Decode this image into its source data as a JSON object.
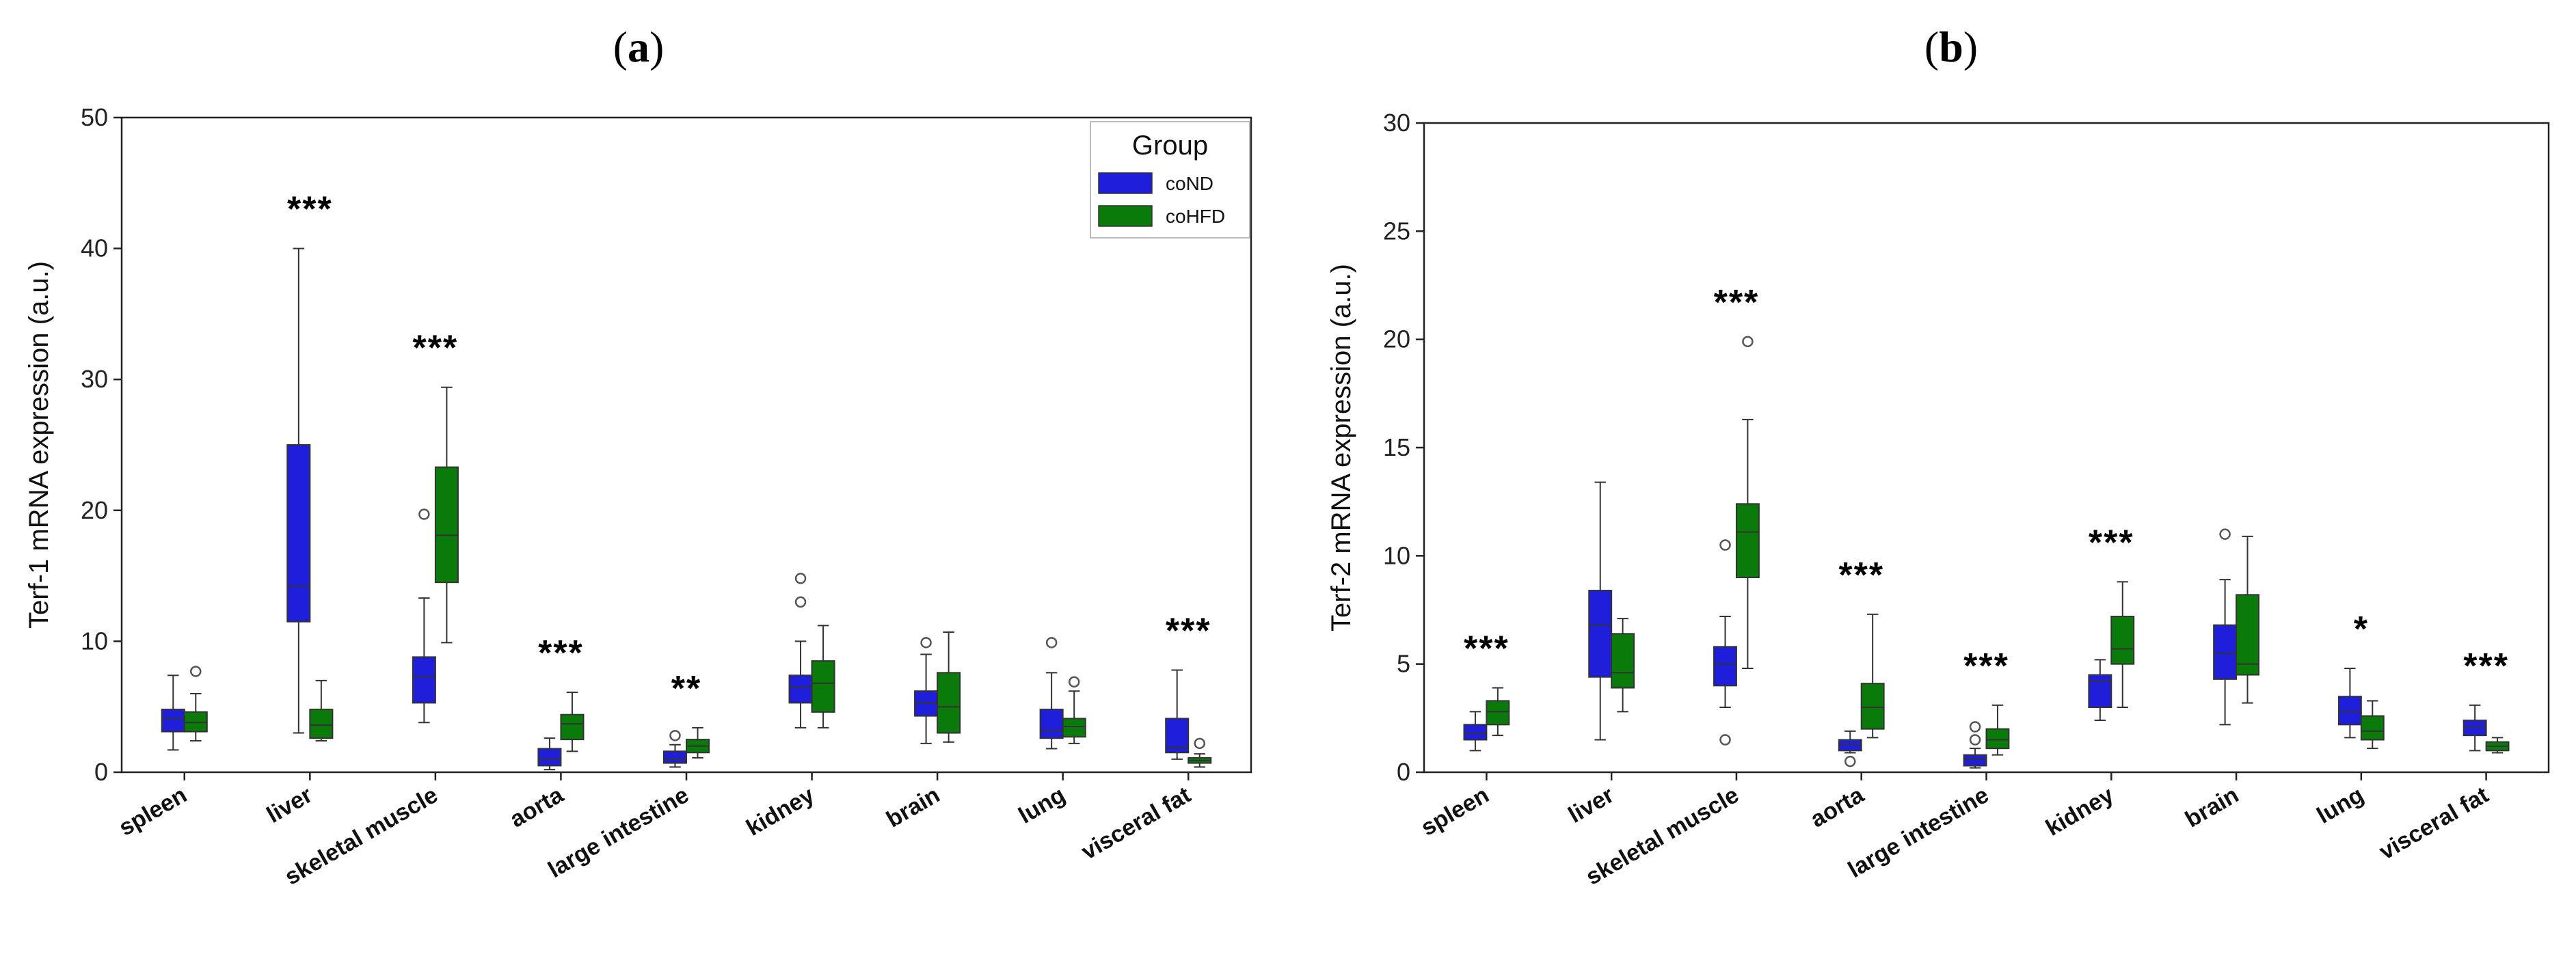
{
  "figure": {
    "panel_labels": [
      {
        "open": "(",
        "letter": "a",
        "close": ")"
      },
      {
        "open": "(",
        "letter": "b",
        "close": ")"
      }
    ]
  },
  "chart_data": [
    {
      "type": "box",
      "panel": "a",
      "title": "",
      "xlabel": "",
      "ylabel": "Terf-1 mRNA expression (a.u.)",
      "ylim": [
        0,
        50
      ],
      "yticks": [
        0,
        10,
        20,
        30,
        40,
        50
      ],
      "categories": [
        "spleen",
        "liver",
        "skeletal muscle",
        "aorta",
        "large intestine",
        "kidney",
        "brain",
        "lung",
        "visceral fat"
      ],
      "legend": {
        "title": "Group",
        "placement": "top-right",
        "entries": [
          {
            "name": "coND",
            "color": "#1f1fdb"
          },
          {
            "name": "coHFD",
            "color": "#0a7a0a"
          }
        ]
      },
      "significance": [
        "",
        "***",
        "***",
        "***",
        "**",
        "",
        "",
        "",
        "***"
      ],
      "series": [
        {
          "name": "coND",
          "color": "#1f1fdb",
          "boxes": [
            {
              "whislo": 1.7,
              "q1": 3.1,
              "med": 4.1,
              "q3": 4.8,
              "whishi": 7.4,
              "fliers": []
            },
            {
              "whislo": 3.0,
              "q1": 11.5,
              "med": 14.2,
              "q3": 25.0,
              "whishi": 40.0,
              "fliers": []
            },
            {
              "whislo": 3.8,
              "q1": 5.3,
              "med": 7.3,
              "q3": 8.8,
              "whishi": 13.3,
              "fliers": [
                19.7
              ]
            },
            {
              "whislo": 0.2,
              "q1": 0.5,
              "med": 1.0,
              "q3": 1.8,
              "whishi": 2.6,
              "fliers": []
            },
            {
              "whislo": 0.4,
              "q1": 0.7,
              "med": 1.0,
              "q3": 1.6,
              "whishi": 2.1,
              "fliers": [
                2.8
              ]
            },
            {
              "whislo": 3.4,
              "q1": 5.3,
              "med": 6.5,
              "q3": 7.4,
              "whishi": 10.0,
              "fliers": [
                13.0,
                14.8
              ]
            },
            {
              "whislo": 2.2,
              "q1": 4.3,
              "med": 5.3,
              "q3": 6.2,
              "whishi": 9.0,
              "fliers": [
                9.9
              ]
            },
            {
              "whislo": 1.8,
              "q1": 2.6,
              "med": 3.2,
              "q3": 4.8,
              "whishi": 7.6,
              "fliers": [
                9.9
              ]
            },
            {
              "whislo": 1.0,
              "q1": 1.5,
              "med": 1.9,
              "q3": 4.1,
              "whishi": 7.8,
              "fliers": []
            }
          ]
        },
        {
          "name": "coHFD",
          "color": "#0a7a0a",
          "boxes": [
            {
              "whislo": 2.4,
              "q1": 3.1,
              "med": 3.8,
              "q3": 4.6,
              "whishi": 6.0,
              "fliers": [
                7.7
              ]
            },
            {
              "whislo": 2.4,
              "q1": 2.6,
              "med": 3.6,
              "q3": 4.8,
              "whishi": 7.0,
              "fliers": []
            },
            {
              "whislo": 9.9,
              "q1": 14.5,
              "med": 18.1,
              "q3": 23.3,
              "whishi": 29.4,
              "fliers": []
            },
            {
              "whislo": 1.6,
              "q1": 2.5,
              "med": 3.7,
              "q3": 4.4,
              "whishi": 6.1,
              "fliers": []
            },
            {
              "whislo": 1.1,
              "q1": 1.5,
              "med": 2.0,
              "q3": 2.5,
              "whishi": 3.4,
              "fliers": []
            },
            {
              "whislo": 3.4,
              "q1": 4.6,
              "med": 6.8,
              "q3": 8.5,
              "whishi": 11.2,
              "fliers": []
            },
            {
              "whislo": 2.3,
              "q1": 3.0,
              "med": 5.0,
              "q3": 7.6,
              "whishi": 10.7,
              "fliers": []
            },
            {
              "whislo": 2.2,
              "q1": 2.7,
              "med": 3.5,
              "q3": 4.1,
              "whishi": 6.2,
              "fliers": [
                6.9
              ]
            },
            {
              "whislo": 0.4,
              "q1": 0.7,
              "med": 0.9,
              "q3": 1.1,
              "whishi": 1.4,
              "fliers": [
                2.2
              ]
            }
          ]
        }
      ]
    },
    {
      "type": "box",
      "panel": "b",
      "title": "",
      "xlabel": "",
      "ylabel": "Terf-2 mRNA expression (a.u.)",
      "ylim": [
        0,
        30
      ],
      "yticks": [
        0,
        5,
        10,
        15,
        20,
        25,
        30
      ],
      "categories": [
        "spleen",
        "liver",
        "skeletal muscle",
        "aorta",
        "large intestine",
        "kidney",
        "brain",
        "lung",
        "visceral fat"
      ],
      "significance": [
        "***",
        "",
        "***",
        "***",
        "***",
        "***",
        "",
        "*",
        "***"
      ],
      "series": [
        {
          "name": "coND",
          "color": "#1f1fdb",
          "boxes": [
            {
              "whislo": 1.0,
              "q1": 1.5,
              "med": 1.8,
              "q3": 2.2,
              "whishi": 2.8,
              "fliers": []
            },
            {
              "whislo": 1.5,
              "q1": 4.4,
              "med": 6.8,
              "q3": 8.4,
              "whishi": 13.4,
              "fliers": []
            },
            {
              "whislo": 3.0,
              "q1": 4.0,
              "med": 5.0,
              "q3": 5.8,
              "whishi": 7.2,
              "fliers": [
                10.5,
                1.5
              ]
            },
            {
              "whislo": 0.9,
              "q1": 1.0,
              "med": 1.3,
              "q3": 1.5,
              "whishi": 1.9,
              "fliers": [
                0.5
              ]
            },
            {
              "whislo": 0.2,
              "q1": 0.3,
              "med": 0.6,
              "q3": 0.8,
              "whishi": 1.1,
              "fliers": [
                1.5,
                2.1
              ]
            },
            {
              "whislo": 2.4,
              "q1": 3.0,
              "med": 4.2,
              "q3": 4.5,
              "whishi": 5.2,
              "fliers": []
            },
            {
              "whislo": 2.2,
              "q1": 4.3,
              "med": 5.5,
              "q3": 6.8,
              "whishi": 8.9,
              "fliers": [
                11.0
              ]
            },
            {
              "whislo": 1.6,
              "q1": 2.2,
              "med": 2.8,
              "q3": 3.5,
              "whishi": 4.8,
              "fliers": []
            },
            {
              "whislo": 1.0,
              "q1": 1.7,
              "med": 2.1,
              "q3": 2.4,
              "whishi": 3.1,
              "fliers": []
            }
          ]
        },
        {
          "name": "coHFD",
          "color": "#0a7a0a",
          "boxes": [
            {
              "whislo": 1.7,
              "q1": 2.2,
              "med": 2.8,
              "q3": 3.3,
              "whishi": 3.9,
              "fliers": []
            },
            {
              "whislo": 2.8,
              "q1": 3.9,
              "med": 4.6,
              "q3": 6.4,
              "whishi": 7.1,
              "fliers": []
            },
            {
              "whislo": 4.8,
              "q1": 9.0,
              "med": 11.1,
              "q3": 12.4,
              "whishi": 16.3,
              "fliers": [
                19.9
              ]
            },
            {
              "whislo": 1.6,
              "q1": 2.0,
              "med": 3.0,
              "q3": 4.1,
              "whishi": 7.3,
              "fliers": []
            },
            {
              "whislo": 0.8,
              "q1": 1.1,
              "med": 1.5,
              "q3": 2.0,
              "whishi": 3.1,
              "fliers": []
            },
            {
              "whislo": 3.0,
              "q1": 5.0,
              "med": 5.7,
              "q3": 7.2,
              "whishi": 8.8,
              "fliers": []
            },
            {
              "whislo": 3.2,
              "q1": 4.5,
              "med": 5.0,
              "q3": 8.2,
              "whishi": 10.9,
              "fliers": []
            },
            {
              "whislo": 1.1,
              "q1": 1.5,
              "med": 1.9,
              "q3": 2.6,
              "whishi": 3.3,
              "fliers": []
            },
            {
              "whislo": 0.9,
              "q1": 1.0,
              "med": 1.2,
              "q3": 1.4,
              "whishi": 1.6,
              "fliers": []
            }
          ]
        }
      ]
    }
  ]
}
